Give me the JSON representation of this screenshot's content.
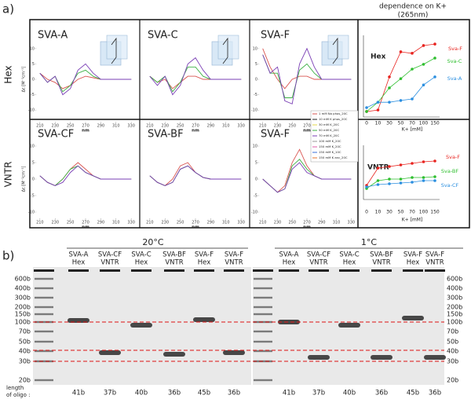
{
  "panel_a": {
    "label": "a)",
    "k_header": [
      "dependence on K+",
      "(265nm)"
    ],
    "row_labels": [
      "Hex",
      "VNTR"
    ],
    "legend": [
      {
        "name": "1 mM Na phos_20C",
        "color": "#d9534f"
      },
      {
        "name": "10 mM K phos_20C",
        "color": "#222222"
      },
      {
        "name": "30 mM K_20C",
        "color": "#e6d84a"
      },
      {
        "name": "50 mM K_20C",
        "color": "#3cb043"
      },
      {
        "name": "70 mM K_20C",
        "color": "#7a3fb5"
      },
      {
        "name": "100 mM K_20C",
        "color": "#9a9a9a"
      },
      {
        "name": "150 mM K_20C",
        "color": "#e05aa8"
      },
      {
        "name": "150 mM K_10C",
        "color": "#3a6fd8"
      },
      {
        "name": "150 mM K anc_20C",
        "color": "#e8762b"
      }
    ]
  },
  "chart_data": [
    {
      "type": "line",
      "title": "SVA-A",
      "x": [
        210,
        220,
        230,
        240,
        250,
        260,
        270,
        280,
        290,
        300,
        310,
        320,
        330
      ],
      "xlim": [
        205,
        335
      ],
      "xticks": [
        210,
        230,
        250,
        270,
        290,
        310,
        330
      ],
      "xlabel": "nm",
      "ylim": [
        -12,
        12
      ],
      "yticks": [
        -10,
        -5,
        0,
        5,
        10
      ],
      "ylabel": "Δε [M⁻¹cm⁻¹]",
      "series": [
        {
          "color": "#d9534f",
          "values": [
            2,
            0,
            -1,
            -3,
            -2,
            0,
            1,
            0.5,
            0,
            0,
            0,
            0,
            0
          ]
        },
        {
          "color": "#3cb043",
          "values": [
            2,
            -1,
            1,
            -4,
            -2,
            2,
            3,
            1,
            0,
            0,
            0,
            0,
            0
          ]
        },
        {
          "color": "#7a3fb5",
          "values": [
            2,
            -1,
            1,
            -5,
            -3,
            3,
            5,
            2,
            0,
            0,
            0,
            0,
            0
          ]
        }
      ]
    },
    {
      "type": "line",
      "title": "SVA-C",
      "x": [
        210,
        220,
        230,
        240,
        250,
        260,
        270,
        280,
        290,
        300,
        310,
        320,
        330
      ],
      "xlim": [
        205,
        335
      ],
      "xticks": [
        210,
        230,
        250,
        270,
        290,
        310,
        330
      ],
      "xlabel": "nm",
      "ylim": [
        -12,
        12
      ],
      "series": [
        {
          "color": "#d9534f",
          "values": [
            1,
            -1,
            0,
            -3,
            -1,
            1,
            1,
            0,
            0,
            0,
            0,
            0,
            0
          ]
        },
        {
          "color": "#3cb043",
          "values": [
            1,
            -1,
            1,
            -4,
            -1,
            4,
            4,
            1,
            0,
            0,
            0,
            0,
            0
          ]
        },
        {
          "color": "#7a3fb5",
          "values": [
            1,
            -2,
            1,
            -5,
            -2,
            5,
            7,
            3,
            0,
            0,
            0,
            0,
            0
          ]
        }
      ]
    },
    {
      "type": "line",
      "title": "SVA-F",
      "x": [
        210,
        220,
        230,
        240,
        250,
        260,
        270,
        280,
        290,
        300,
        310,
        320,
        330
      ],
      "xlim": [
        205,
        335
      ],
      "xticks": [
        210,
        230,
        250,
        270,
        290,
        310,
        330
      ],
      "xlabel": "nm",
      "ylim": [
        -12,
        12
      ],
      "yticks": [
        -10,
        -5,
        0,
        5,
        10
      ],
      "series": [
        {
          "color": "#d9534f",
          "values": [
            10,
            4,
            0,
            -3,
            0,
            1,
            1,
            0,
            0,
            0,
            0,
            0,
            0
          ]
        },
        {
          "color": "#3cb043",
          "values": [
            8,
            2,
            2,
            -6,
            -6,
            3,
            5,
            2,
            0,
            0,
            0,
            0,
            0
          ]
        },
        {
          "color": "#7a3fb5",
          "values": [
            8,
            2,
            4,
            -7,
            -8,
            5,
            10,
            4,
            0,
            0,
            0,
            0,
            0
          ]
        }
      ]
    },
    {
      "type": "line",
      "title": "SVA-CF",
      "x": [
        210,
        220,
        230,
        240,
        250,
        260,
        270,
        280,
        290,
        300,
        310,
        320,
        330
      ],
      "xlim": [
        205,
        335
      ],
      "xticks": [
        210,
        230,
        250,
        270,
        290,
        310,
        330
      ],
      "xlabel": "nm",
      "ylim": [
        -12,
        12
      ],
      "yticks": [
        -10,
        -5,
        0,
        5,
        10
      ],
      "ylabel": "Δε [M⁻¹cm⁻¹]",
      "series": [
        {
          "color": "#d9534f",
          "values": [
            1,
            -1,
            -2,
            0,
            3,
            5,
            3,
            1,
            0,
            0,
            0,
            0,
            0
          ]
        },
        {
          "color": "#3cb043",
          "values": [
            1,
            -1,
            -2,
            0,
            3,
            4,
            2,
            1,
            0,
            0,
            0,
            0,
            0
          ]
        },
        {
          "color": "#7a3fb5",
          "values": [
            1,
            -1,
            -2,
            -1,
            2,
            4,
            2,
            1,
            0,
            0,
            0,
            0,
            0
          ]
        }
      ]
    },
    {
      "type": "line",
      "title": "SVA-BF",
      "x": [
        210,
        220,
        230,
        240,
        250,
        260,
        270,
        280,
        290,
        300,
        310,
        320,
        330
      ],
      "xlim": [
        205,
        335
      ],
      "xticks": [
        210,
        230,
        250,
        270,
        290,
        310,
        330
      ],
      "xlabel": "nm",
      "ylim": [
        -12,
        12
      ],
      "series": [
        {
          "color": "#d9534f",
          "values": [
            1,
            -1,
            -2,
            0,
            4,
            5,
            2,
            0.5,
            0,
            0,
            0,
            0,
            0
          ]
        },
        {
          "color": "#3cb043",
          "values": [
            1,
            -1,
            -2,
            -1,
            3,
            4,
            2,
            0.5,
            0,
            0,
            0,
            0,
            0
          ]
        },
        {
          "color": "#7a3fb5",
          "values": [
            1,
            -1,
            -2,
            -1,
            3,
            4,
            2,
            0.5,
            0,
            0,
            0,
            0,
            0
          ]
        }
      ]
    },
    {
      "type": "line",
      "title": "SVA-F",
      "x": [
        210,
        220,
        230,
        240,
        250,
        260,
        270,
        280,
        290,
        300,
        310,
        320,
        330
      ],
      "xlim": [
        205,
        335
      ],
      "xticks": [
        210,
        230,
        250,
        270,
        290,
        310,
        330
      ],
      "xlabel": "nm",
      "ylim": [
        -12,
        12
      ],
      "yticks": [
        -10,
        -5,
        0,
        5,
        10
      ],
      "series": [
        {
          "color": "#d9534f",
          "values": [
            0,
            -2,
            -4,
            -2,
            5,
            9,
            4,
            1,
            0,
            0,
            0,
            0,
            0
          ]
        },
        {
          "color": "#3cb043",
          "values": [
            0,
            -2,
            -4,
            -3,
            4,
            6,
            3,
            1,
            0,
            0,
            0,
            0,
            0
          ]
        },
        {
          "color": "#7a3fb5",
          "values": [
            0,
            -2,
            -4,
            -3,
            3,
            5,
            2,
            1,
            0,
            0,
            0,
            0,
            0
          ]
        }
      ]
    },
    {
      "type": "kline",
      "title": "Hex",
      "categories": [
        "0",
        "10",
        "30",
        "50",
        "70",
        "100",
        "150"
      ],
      "xlabel": "K+ [mM]",
      "ylim": [
        0,
        25
      ],
      "series": [
        {
          "name": "Sva-F",
          "color": "#e8231f",
          "values": [
            0.8,
            1.3,
            12.4,
            20.8,
            20.3,
            22.9,
            23.4
          ]
        },
        {
          "name": "Sva-C",
          "color": "#2fbf2f",
          "values": [
            0.8,
            3.9,
            8.7,
            11.8,
            15,
            16.6,
            18.7
          ]
        },
        {
          "name": "Sva-A",
          "color": "#2b8fe0",
          "values": [
            2.1,
            3.9,
            3.9,
            4.5,
            5,
            9.7,
            12.4
          ]
        }
      ]
    },
    {
      "type": "kline",
      "title": "VNTR",
      "categories": [
        "0",
        "10",
        "30",
        "50",
        "70",
        "100",
        "150"
      ],
      "xlabel": "K+ [mM]",
      "ylim": [
        0,
        15
      ],
      "series": [
        {
          "name": "Sva-F",
          "color": "#e8231f",
          "values": [
            3.5,
            9,
            9.5,
            10,
            10.5,
            11,
            11.25
          ]
        },
        {
          "name": "Sva-BF",
          "color": "#2fbf2f",
          "values": [
            2.5,
            5,
            5.5,
            5.5,
            6,
            6,
            6.25
          ]
        },
        {
          "name": "Sva-CF",
          "color": "#2b8fe0",
          "values": [
            3,
            3.75,
            4,
            4.25,
            4.5,
            5,
            5
          ]
        }
      ]
    }
  ],
  "panel_b": {
    "label": "b)",
    "ladder": [
      "600b",
      "400b",
      "300b",
      "200b",
      "150b",
      "100b",
      "70b",
      "50b",
      "40b",
      "30b",
      "20b"
    ],
    "length_caption": [
      "length",
      "of oligo :"
    ],
    "gels": [
      {
        "title": "20°C",
        "lanes": [
          {
            "name": "SVA-A",
            "type": "Hex",
            "length": "41b"
          },
          {
            "name": "SVA-CF",
            "type": "VNTR",
            "length": "37b"
          },
          {
            "name": "SVA-C",
            "type": "Hex",
            "length": "40b"
          },
          {
            "name": "SVA-BF",
            "type": "VNTR",
            "length": "36b"
          },
          {
            "name": "SVA-F",
            "type": "Hex",
            "length": "45b"
          },
          {
            "name": "SVA-F",
            "type": "VNTR",
            "length": "36b"
          }
        ]
      },
      {
        "title": "1°C",
        "lanes": [
          {
            "name": "SVA-A",
            "type": "Hex",
            "length": "41b"
          },
          {
            "name": "SVA-CF",
            "type": "VNTR",
            "length": "37b"
          },
          {
            "name": "SVA-C",
            "type": "Hex",
            "length": "40b"
          },
          {
            "name": "SVA-BF",
            "type": "VNTR",
            "length": "36b"
          },
          {
            "name": "SVA-F",
            "type": "Hex",
            "length": "45b"
          },
          {
            "name": "SVA-F",
            "type": "VNTR",
            "length": "36b"
          }
        ]
      }
    ]
  }
}
